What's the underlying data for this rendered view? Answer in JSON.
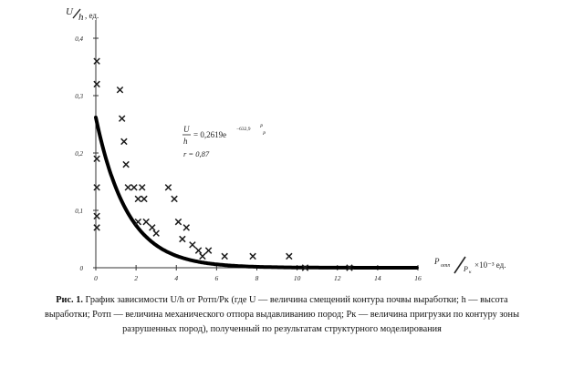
{
  "chart_data": {
    "type": "scatter",
    "title": "",
    "ylabel": {
      "main": "U",
      "sub": "h",
      "unit": ", ед."
    },
    "xlabel": {
      "numerator": "P",
      "numerator_sub": "отп",
      "denominator": "P",
      "denominator_sub": "к",
      "unit": "×10⁻³ ед."
    },
    "xlim": [
      0,
      16
    ],
    "ylim": [
      0,
      0.4
    ],
    "x_ticks": [
      "0",
      "2",
      "4",
      "6",
      "8",
      "10",
      "12",
      "14",
      "16"
    ],
    "y_ticks": [
      "0",
      "0,1",
      "0,2",
      "0,3",
      "0,4"
    ],
    "series": [
      {
        "type": "scatter",
        "marker": "x",
        "points": [
          [
            0.05,
            0.36
          ],
          [
            0.05,
            0.32
          ],
          [
            0.05,
            0.19
          ],
          [
            0.05,
            0.14
          ],
          [
            0.05,
            0.09
          ],
          [
            0.05,
            0.07
          ],
          [
            1.2,
            0.31
          ],
          [
            1.3,
            0.26
          ],
          [
            1.4,
            0.22
          ],
          [
            1.5,
            0.18
          ],
          [
            1.6,
            0.14
          ],
          [
            1.9,
            0.14
          ],
          [
            2.1,
            0.12
          ],
          [
            2.3,
            0.14
          ],
          [
            2.4,
            0.12
          ],
          [
            2.1,
            0.08
          ],
          [
            2.5,
            0.08
          ],
          [
            2.8,
            0.07
          ],
          [
            3.0,
            0.06
          ],
          [
            3.6,
            0.14
          ],
          [
            3.9,
            0.12
          ],
          [
            4.1,
            0.08
          ],
          [
            4.5,
            0.07
          ],
          [
            4.3,
            0.05
          ],
          [
            4.8,
            0.04
          ],
          [
            5.1,
            0.03
          ],
          [
            5.6,
            0.03
          ],
          [
            5.3,
            0.02
          ],
          [
            6.4,
            0.02
          ],
          [
            7.8,
            0.02
          ],
          [
            9.6,
            0.02
          ],
          [
            10.4,
            0.0
          ],
          [
            12.6,
            0.0
          ]
        ]
      },
      {
        "type": "line",
        "function": "exp",
        "coefficient": 0.2619,
        "exponent": -632.9,
        "x_scale": 0.001
      }
    ],
    "annotation": {
      "lhs_num": "U",
      "lhs_den": "h",
      "rhs": "= 0,2619e",
      "exponent": "−632,9",
      "exponent_frac_num": "P",
      "exponent_frac_den": "P",
      "correlation": "r = 0,87"
    },
    "caption": {
      "label": "Рис. 1.",
      "text": "График зависимости U/h от Pотп/Pк (где U — величина смещений контура почвы выработки; h — высота выработки; Pотп — величина механического отпора выдавливанию пород; Pк — величина пригрузки по контуру зоны разрушенных пород), полученный по результатам структурного моделирования"
    },
    "colors": {
      "markers": "#1a1a1a",
      "curve": "#000000",
      "axes": "#333333"
    }
  }
}
